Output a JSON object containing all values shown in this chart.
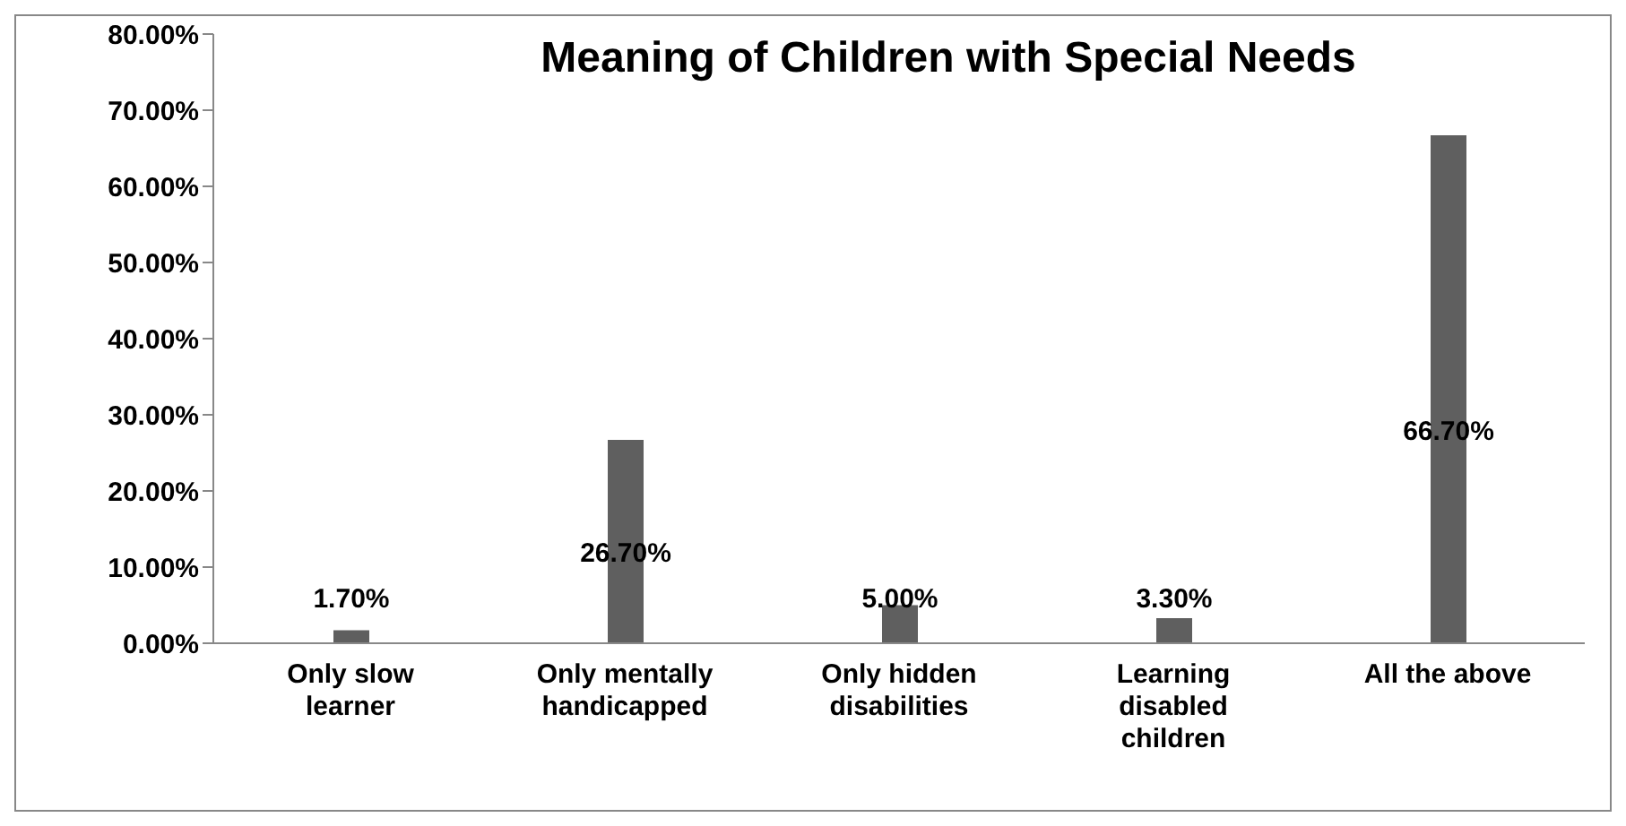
{
  "chart_data": {
    "type": "bar",
    "title": "Meaning of Children with Special Needs",
    "categories": [
      "Only slow learner",
      "Only mentally handicapped",
      "Only hidden disabilities",
      "Learning disabled children",
      "All the above"
    ],
    "values": [
      1.7,
      26.7,
      5,
      3.3,
      66.7
    ],
    "value_labels": [
      "1.70%",
      "26.70%",
      "5.00%",
      "3.30%",
      "66.70%"
    ],
    "color": "#5f5f5f",
    "ylim": [
      0,
      80
    ],
    "yticks": [
      {
        "value": 0,
        "label": "0.00%"
      },
      {
        "value": 10,
        "label": "10.00%"
      },
      {
        "value": 20,
        "label": "20.00%"
      },
      {
        "value": 30,
        "label": "30.00%"
      },
      {
        "value": 40,
        "label": "40.00%"
      },
      {
        "value": 50,
        "label": "50.00%"
      },
      {
        "value": 60,
        "label": "60.00%"
      },
      {
        "value": 70,
        "label": "70.00%"
      },
      {
        "value": 80,
        "label": "80.00%"
      }
    ],
    "grid": false,
    "legend": false
  }
}
